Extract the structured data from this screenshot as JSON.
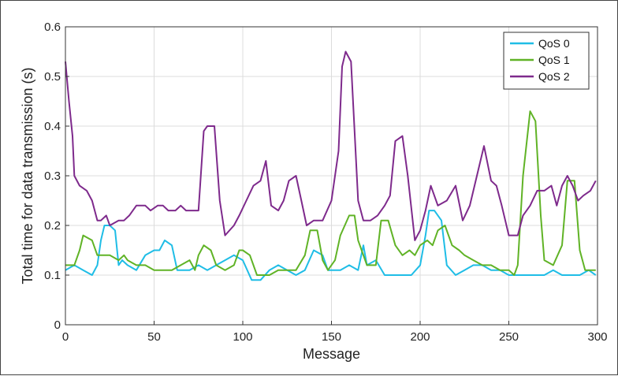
{
  "chart_data": {
    "type": "line",
    "title": "",
    "xlabel": "Message",
    "ylabel": "Total time for data transmission (s)",
    "xlim": [
      0,
      300
    ],
    "ylim": [
      0,
      0.6
    ],
    "x_ticks": [
      0,
      50,
      100,
      150,
      200,
      250,
      300
    ],
    "y_ticks": [
      0,
      0.1,
      0.2,
      0.3,
      0.4,
      0.5,
      0.6
    ],
    "x_tick_labels": [
      "0",
      "50",
      "100",
      "150",
      "200",
      "250",
      "300"
    ],
    "y_tick_labels": [
      "0",
      "0.1",
      "0.2",
      "0.3",
      "0.4",
      "0.5",
      "0.6"
    ],
    "grid": true,
    "legend_position": "top-right",
    "series": [
      {
        "name": "QoS 0",
        "color": "#1fbde6",
        "points": [
          [
            0,
            0.11
          ],
          [
            5,
            0.12
          ],
          [
            10,
            0.11
          ],
          [
            15,
            0.1
          ],
          [
            18,
            0.12
          ],
          [
            20,
            0.17
          ],
          [
            22,
            0.2
          ],
          [
            25,
            0.2
          ],
          [
            28,
            0.19
          ],
          [
            30,
            0.12
          ],
          [
            32,
            0.13
          ],
          [
            35,
            0.12
          ],
          [
            40,
            0.11
          ],
          [
            45,
            0.14
          ],
          [
            50,
            0.15
          ],
          [
            53,
            0.15
          ],
          [
            56,
            0.17
          ],
          [
            60,
            0.16
          ],
          [
            63,
            0.11
          ],
          [
            65,
            0.11
          ],
          [
            70,
            0.11
          ],
          [
            75,
            0.12
          ],
          [
            80,
            0.11
          ],
          [
            85,
            0.12
          ],
          [
            90,
            0.13
          ],
          [
            95,
            0.14
          ],
          [
            100,
            0.13
          ],
          [
            105,
            0.09
          ],
          [
            110,
            0.09
          ],
          [
            115,
            0.11
          ],
          [
            120,
            0.12
          ],
          [
            125,
            0.11
          ],
          [
            130,
            0.1
          ],
          [
            135,
            0.11
          ],
          [
            140,
            0.15
          ],
          [
            145,
            0.14
          ],
          [
            148,
            0.11
          ],
          [
            150,
            0.11
          ],
          [
            155,
            0.11
          ],
          [
            160,
            0.12
          ],
          [
            165,
            0.11
          ],
          [
            168,
            0.16
          ],
          [
            170,
            0.12
          ],
          [
            175,
            0.13
          ],
          [
            180,
            0.1
          ],
          [
            185,
            0.1
          ],
          [
            190,
            0.1
          ],
          [
            195,
            0.1
          ],
          [
            200,
            0.12
          ],
          [
            203,
            0.18
          ],
          [
            205,
            0.23
          ],
          [
            208,
            0.23
          ],
          [
            212,
            0.21
          ],
          [
            215,
            0.12
          ],
          [
            220,
            0.1
          ],
          [
            225,
            0.11
          ],
          [
            230,
            0.12
          ],
          [
            235,
            0.12
          ],
          [
            240,
            0.11
          ],
          [
            245,
            0.11
          ],
          [
            250,
            0.1
          ],
          [
            255,
            0.1
          ],
          [
            260,
            0.1
          ],
          [
            265,
            0.1
          ],
          [
            270,
            0.1
          ],
          [
            275,
            0.11
          ],
          [
            280,
            0.1
          ],
          [
            285,
            0.1
          ],
          [
            290,
            0.1
          ],
          [
            295,
            0.11
          ],
          [
            299,
            0.1
          ]
        ]
      },
      {
        "name": "QoS 1",
        "color": "#60b326",
        "points": [
          [
            0,
            0.12
          ],
          [
            5,
            0.12
          ],
          [
            8,
            0.15
          ],
          [
            10,
            0.18
          ],
          [
            15,
            0.17
          ],
          [
            18,
            0.14
          ],
          [
            20,
            0.14
          ],
          [
            25,
            0.14
          ],
          [
            30,
            0.13
          ],
          [
            33,
            0.14
          ],
          [
            35,
            0.13
          ],
          [
            40,
            0.12
          ],
          [
            45,
            0.12
          ],
          [
            50,
            0.11
          ],
          [
            55,
            0.11
          ],
          [
            60,
            0.11
          ],
          [
            65,
            0.12
          ],
          [
            70,
            0.13
          ],
          [
            73,
            0.11
          ],
          [
            75,
            0.14
          ],
          [
            78,
            0.16
          ],
          [
            82,
            0.15
          ],
          [
            85,
            0.12
          ],
          [
            90,
            0.11
          ],
          [
            95,
            0.12
          ],
          [
            98,
            0.15
          ],
          [
            100,
            0.15
          ],
          [
            104,
            0.14
          ],
          [
            108,
            0.1
          ],
          [
            115,
            0.1
          ],
          [
            120,
            0.11
          ],
          [
            125,
            0.11
          ],
          [
            130,
            0.11
          ],
          [
            135,
            0.14
          ],
          [
            138,
            0.19
          ],
          [
            142,
            0.19
          ],
          [
            145,
            0.13
          ],
          [
            148,
            0.11
          ],
          [
            152,
            0.13
          ],
          [
            155,
            0.18
          ],
          [
            160,
            0.22
          ],
          [
            163,
            0.22
          ],
          [
            165,
            0.17
          ],
          [
            170,
            0.12
          ],
          [
            175,
            0.12
          ],
          [
            178,
            0.21
          ],
          [
            182,
            0.21
          ],
          [
            186,
            0.16
          ],
          [
            190,
            0.14
          ],
          [
            194,
            0.15
          ],
          [
            197,
            0.14
          ],
          [
            200,
            0.16
          ],
          [
            204,
            0.17
          ],
          [
            207,
            0.16
          ],
          [
            210,
            0.19
          ],
          [
            214,
            0.2
          ],
          [
            218,
            0.16
          ],
          [
            222,
            0.15
          ],
          [
            225,
            0.14
          ],
          [
            230,
            0.13
          ],
          [
            235,
            0.12
          ],
          [
            240,
            0.12
          ],
          [
            245,
            0.11
          ],
          [
            250,
            0.11
          ],
          [
            253,
            0.1
          ],
          [
            255,
            0.12
          ],
          [
            258,
            0.3
          ],
          [
            262,
            0.43
          ],
          [
            265,
            0.41
          ],
          [
            268,
            0.22
          ],
          [
            270,
            0.13
          ],
          [
            275,
            0.12
          ],
          [
            280,
            0.16
          ],
          [
            283,
            0.29
          ],
          [
            287,
            0.29
          ],
          [
            290,
            0.15
          ],
          [
            293,
            0.11
          ],
          [
            297,
            0.11
          ],
          [
            299,
            0.11
          ]
        ]
      },
      {
        "name": "QoS 2",
        "color": "#7e2a8c",
        "points": [
          [
            0,
            0.53
          ],
          [
            2,
            0.45
          ],
          [
            4,
            0.38
          ],
          [
            5,
            0.3
          ],
          [
            8,
            0.28
          ],
          [
            12,
            0.27
          ],
          [
            15,
            0.25
          ],
          [
            18,
            0.21
          ],
          [
            20,
            0.21
          ],
          [
            23,
            0.22
          ],
          [
            25,
            0.2
          ],
          [
            30,
            0.21
          ],
          [
            33,
            0.21
          ],
          [
            36,
            0.22
          ],
          [
            40,
            0.24
          ],
          [
            45,
            0.24
          ],
          [
            48,
            0.23
          ],
          [
            52,
            0.24
          ],
          [
            55,
            0.24
          ],
          [
            58,
            0.23
          ],
          [
            62,
            0.23
          ],
          [
            65,
            0.24
          ],
          [
            68,
            0.23
          ],
          [
            72,
            0.23
          ],
          [
            75,
            0.23
          ],
          [
            78,
            0.39
          ],
          [
            80,
            0.4
          ],
          [
            84,
            0.4
          ],
          [
            87,
            0.25
          ],
          [
            90,
            0.18
          ],
          [
            95,
            0.2
          ],
          [
            98,
            0.22
          ],
          [
            102,
            0.25
          ],
          [
            106,
            0.28
          ],
          [
            110,
            0.29
          ],
          [
            113,
            0.33
          ],
          [
            116,
            0.24
          ],
          [
            120,
            0.23
          ],
          [
            123,
            0.25
          ],
          [
            126,
            0.29
          ],
          [
            130,
            0.3
          ],
          [
            133,
            0.25
          ],
          [
            136,
            0.2
          ],
          [
            140,
            0.21
          ],
          [
            145,
            0.21
          ],
          [
            150,
            0.25
          ],
          [
            154,
            0.35
          ],
          [
            156,
            0.52
          ],
          [
            158,
            0.55
          ],
          [
            161,
            0.53
          ],
          [
            165,
            0.25
          ],
          [
            168,
            0.21
          ],
          [
            172,
            0.21
          ],
          [
            176,
            0.22
          ],
          [
            180,
            0.24
          ],
          [
            183,
            0.26
          ],
          [
            186,
            0.37
          ],
          [
            190,
            0.38
          ],
          [
            193,
            0.3
          ],
          [
            197,
            0.17
          ],
          [
            200,
            0.19
          ],
          [
            203,
            0.23
          ],
          [
            206,
            0.28
          ],
          [
            210,
            0.24
          ],
          [
            215,
            0.25
          ],
          [
            220,
            0.28
          ],
          [
            224,
            0.21
          ],
          [
            228,
            0.24
          ],
          [
            232,
            0.3
          ],
          [
            236,
            0.36
          ],
          [
            240,
            0.29
          ],
          [
            243,
            0.28
          ],
          [
            246,
            0.24
          ],
          [
            250,
            0.18
          ],
          [
            255,
            0.18
          ],
          [
            258,
            0.22
          ],
          [
            262,
            0.24
          ],
          [
            266,
            0.27
          ],
          [
            270,
            0.27
          ],
          [
            274,
            0.28
          ],
          [
            277,
            0.24
          ],
          [
            280,
            0.28
          ],
          [
            283,
            0.3
          ],
          [
            286,
            0.28
          ],
          [
            289,
            0.25
          ],
          [
            292,
            0.26
          ],
          [
            296,
            0.27
          ],
          [
            299,
            0.29
          ]
        ]
      }
    ]
  }
}
